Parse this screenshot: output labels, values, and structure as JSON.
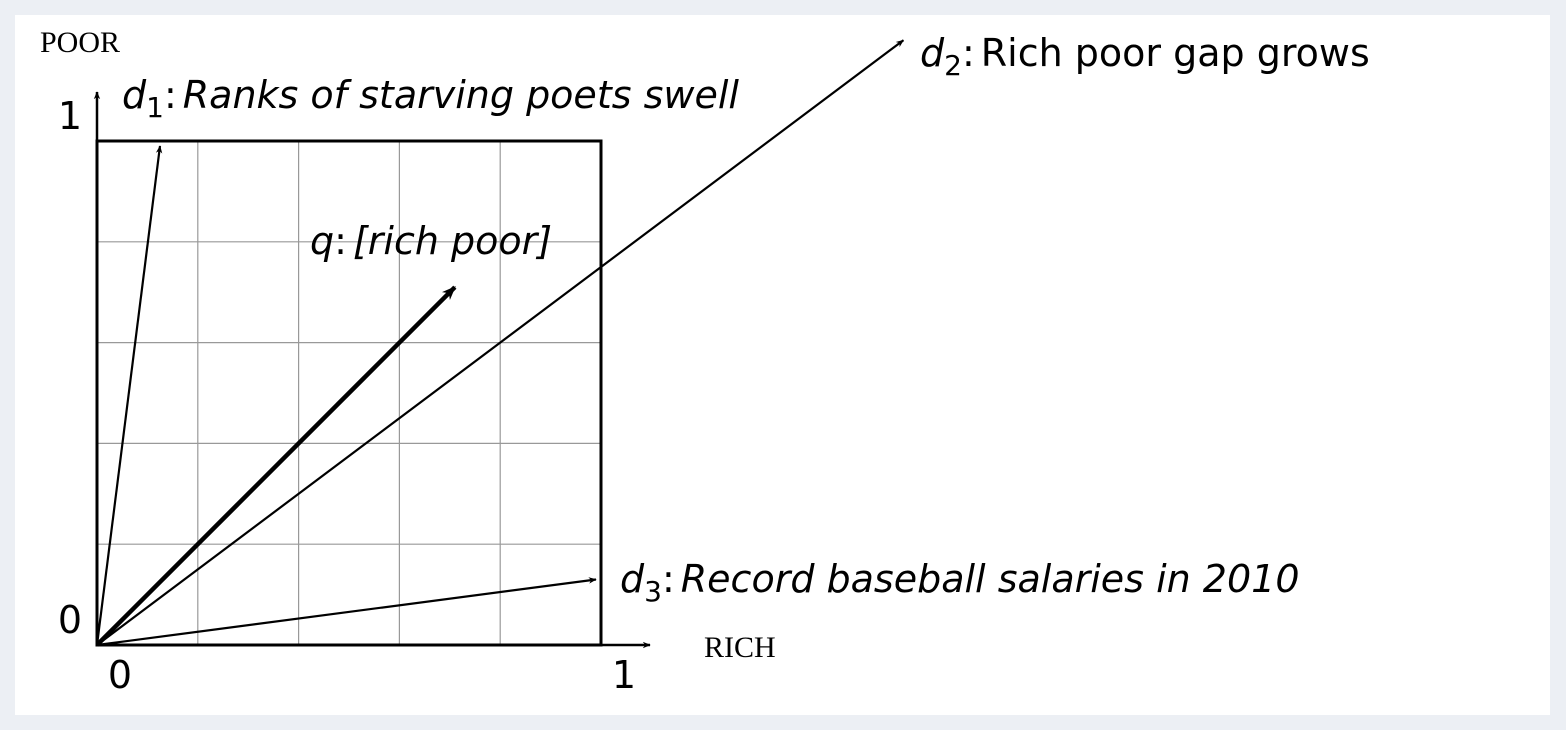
{
  "chart_data": {
    "type": "vector",
    "xlabel": "RICH",
    "ylabel": "POOR",
    "xlim": [
      0,
      1
    ],
    "ylim": [
      0,
      1
    ],
    "xticks": [
      0,
      1
    ],
    "yticks": [
      0,
      1
    ],
    "grid": [
      0.2,
      0.4,
      0.6,
      0.8
    ],
    "separator": ":",
    "vectors": [
      {
        "name": "d",
        "subscript": "1",
        "label": "Ranks of starving poets swell",
        "x": 0.125,
        "y": 0.99
      },
      {
        "name": "d",
        "subscript": "2",
        "label": "Rich poor gap grows",
        "x": 1.6,
        "y": 1.2
      },
      {
        "name": "q",
        "label": "[rich poor]",
        "x": 0.71,
        "y": 0.71,
        "bold": true
      },
      {
        "name": "d",
        "subscript": "3",
        "label": "Record baseball salaries in 2010",
        "x": 0.99,
        "y": 0.13
      }
    ]
  }
}
